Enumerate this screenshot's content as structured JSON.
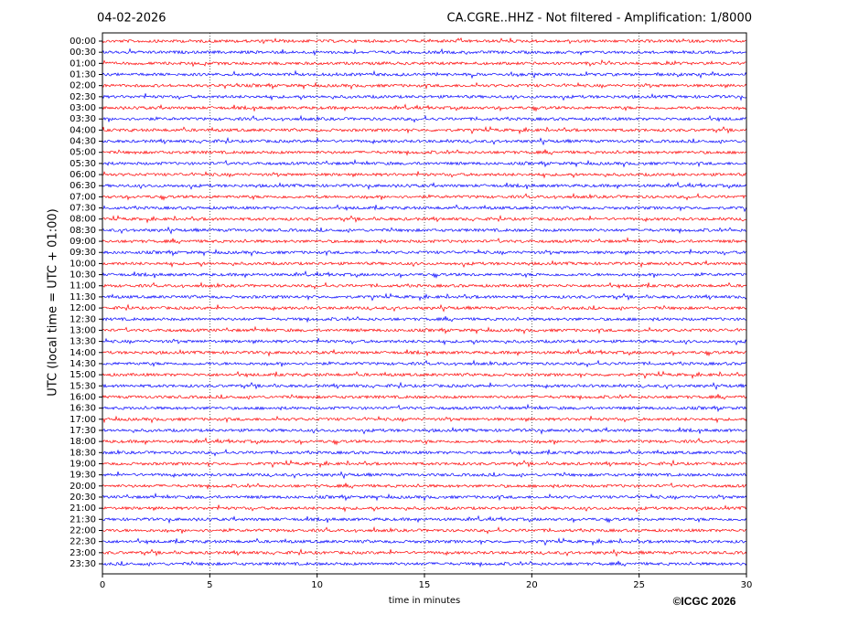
{
  "chart_data": {
    "type": "helicorder",
    "date": "04-02-2026",
    "title": "CA.CGRE..HHZ - Not filtered - Amplification: 1/8000",
    "xlabel": "time in minutes",
    "ylabel": "UTC (local time = UTC + 01:00)",
    "copyright": "©ICGC 2026",
    "xlim": [
      0,
      30
    ],
    "xticks": [
      0,
      5,
      10,
      15,
      20,
      25,
      30
    ],
    "grid": true,
    "series": [
      {
        "name": "00:00",
        "color": "#ff0000"
      },
      {
        "name": "00:30",
        "color": "#0000ff"
      },
      {
        "name": "01:00",
        "color": "#ff0000"
      },
      {
        "name": "01:30",
        "color": "#0000ff"
      },
      {
        "name": "02:00",
        "color": "#ff0000"
      },
      {
        "name": "02:30",
        "color": "#0000ff"
      },
      {
        "name": "03:00",
        "color": "#ff0000"
      },
      {
        "name": "03:30",
        "color": "#0000ff"
      },
      {
        "name": "04:00",
        "color": "#ff0000"
      },
      {
        "name": "04:30",
        "color": "#0000ff"
      },
      {
        "name": "05:00",
        "color": "#ff0000"
      },
      {
        "name": "05:30",
        "color": "#0000ff"
      },
      {
        "name": "06:00",
        "color": "#ff0000"
      },
      {
        "name": "06:30",
        "color": "#0000ff"
      },
      {
        "name": "07:00",
        "color": "#ff0000"
      },
      {
        "name": "07:30",
        "color": "#0000ff"
      },
      {
        "name": "08:00",
        "color": "#ff0000"
      },
      {
        "name": "08:30",
        "color": "#0000ff"
      },
      {
        "name": "09:00",
        "color": "#ff0000"
      },
      {
        "name": "09:30",
        "color": "#0000ff"
      },
      {
        "name": "10:00",
        "color": "#ff0000"
      },
      {
        "name": "10:30",
        "color": "#0000ff"
      },
      {
        "name": "11:00",
        "color": "#ff0000"
      },
      {
        "name": "11:30",
        "color": "#0000ff"
      },
      {
        "name": "12:00",
        "color": "#ff0000"
      },
      {
        "name": "12:30",
        "color": "#0000ff"
      },
      {
        "name": "13:00",
        "color": "#ff0000"
      },
      {
        "name": "13:30",
        "color": "#0000ff"
      },
      {
        "name": "14:00",
        "color": "#ff0000"
      },
      {
        "name": "14:30",
        "color": "#0000ff"
      },
      {
        "name": "15:00",
        "color": "#ff0000"
      },
      {
        "name": "15:30",
        "color": "#0000ff"
      },
      {
        "name": "16:00",
        "color": "#ff0000"
      },
      {
        "name": "16:30",
        "color": "#0000ff"
      },
      {
        "name": "17:00",
        "color": "#ff0000"
      },
      {
        "name": "17:30",
        "color": "#0000ff"
      },
      {
        "name": "18:00",
        "color": "#ff0000"
      },
      {
        "name": "18:30",
        "color": "#0000ff"
      },
      {
        "name": "19:00",
        "color": "#ff0000"
      },
      {
        "name": "19:30",
        "color": "#0000ff"
      },
      {
        "name": "20:00",
        "color": "#ff0000"
      },
      {
        "name": "20:30",
        "color": "#0000ff"
      },
      {
        "name": "21:00",
        "color": "#ff0000"
      },
      {
        "name": "21:30",
        "color": "#0000ff"
      },
      {
        "name": "22:00",
        "color": "#ff0000"
      },
      {
        "name": "22:30",
        "color": "#0000ff"
      },
      {
        "name": "23:00",
        "color": "#ff0000"
      },
      {
        "name": "23:30",
        "color": "#0000ff"
      }
    ]
  }
}
